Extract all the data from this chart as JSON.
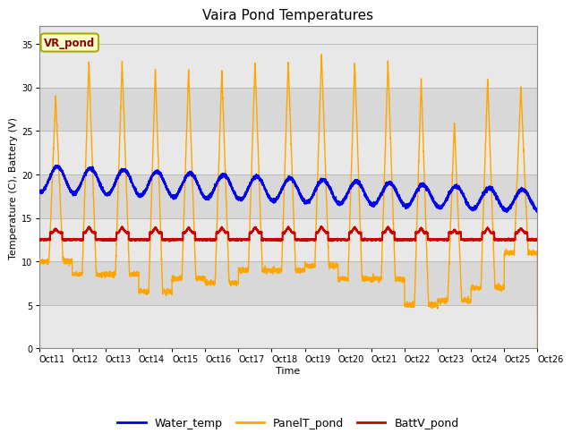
{
  "title": "Vaira Pond Temperatures",
  "xlabel": "Time",
  "ylabel": "Temperature (C), Battery (V)",
  "ylim": [
    0,
    37
  ],
  "yticks": [
    0,
    5,
    10,
    15,
    20,
    25,
    30,
    35
  ],
  "xtick_labels": [
    "Oct 11",
    "Oct 12",
    "Oct 13",
    "Oct 14",
    "Oct 15",
    "Oct 16",
    "Oct 17",
    "Oct 18",
    "Oct 19",
    "Oct 20",
    "Oct 21",
    "Oct 22",
    "Oct 23",
    "Oct 24",
    "Oct 25",
    "Oct 26"
  ],
  "legend_labels": [
    "Water_temp",
    "PanelT_pond",
    "BattV_pond"
  ],
  "water_color": "#0000EE",
  "panel_color": "#FFA500",
  "batt_color": "#CC0000",
  "annotation_text": "VR_pond",
  "annotation_fg": "#8B0000",
  "annotation_bg": "#FFFFCC",
  "annotation_edge": "#AAAA00",
  "band_colors": [
    "#E8E8E8",
    "#D8D8D8"
  ],
  "grid_color": "#CCCCCC",
  "n_days": 15,
  "pts_per_day": 288,
  "title_fontsize": 11,
  "tick_fontsize": 7,
  "label_fontsize": 8,
  "legend_fontsize": 9
}
